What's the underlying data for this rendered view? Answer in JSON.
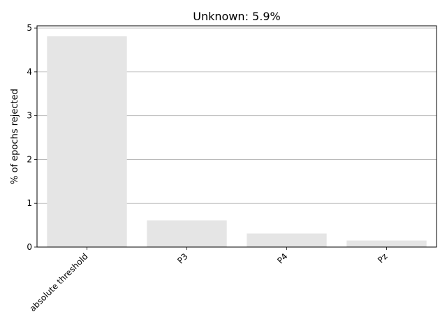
{
  "chart_data": {
    "type": "bar",
    "title": "Unknown: 5.9%",
    "xlabel": "",
    "ylabel": "% of epochs rejected",
    "categories": [
      "absolute threshold",
      "P3",
      "P4",
      "Pz"
    ],
    "values": [
      4.81,
      0.61,
      0.31,
      0.15
    ],
    "ylim": [
      0,
      5.05
    ],
    "yticks": [
      0,
      1,
      2,
      3,
      4,
      5
    ],
    "grid": "horizontal",
    "bar_color": "#e5e5e5"
  }
}
